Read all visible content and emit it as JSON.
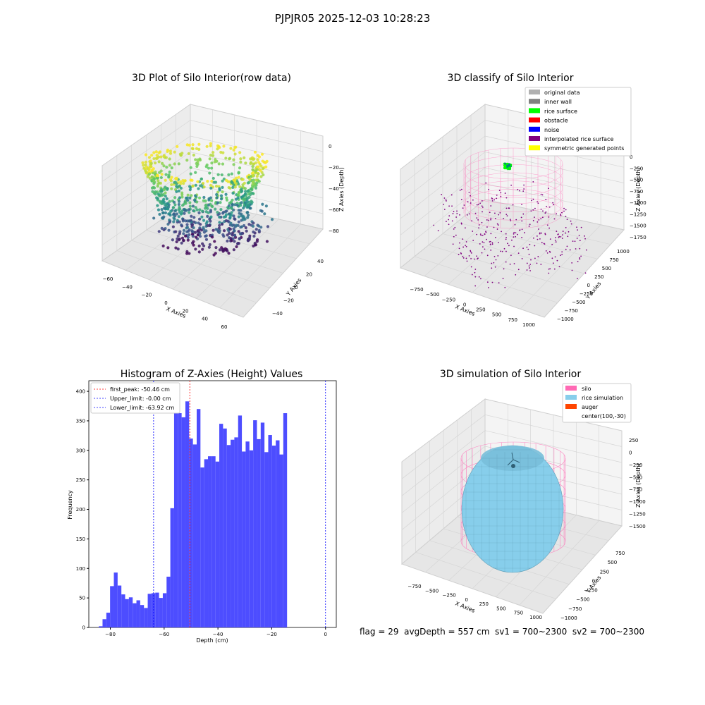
{
  "suptitle": "PJPJR05 2025-12-03 10:28:23",
  "colors": {
    "hist_bar": "#4d4dff",
    "silo_pink": "#ff69b4",
    "rice_blue": "#87ceeb",
    "auger": "#ff4500",
    "pane_face": "#f2f2f2",
    "grid": "#d9d9d9"
  },
  "panels": {
    "raw": {
      "title": "3D Plot of Silo Interior(row data)",
      "xlabel": "X Axies",
      "ylabel": "Y Axies",
      "zlabel": "Z Axies (Depth)",
      "xticks": [
        "−60",
        "−40",
        "−20",
        "0",
        "20",
        "40",
        "60"
      ],
      "yticks": [
        "40",
        "20",
        "0",
        "−20",
        "−40"
      ],
      "zticks": [
        "0",
        "−20",
        "−40",
        "−60",
        "−80"
      ]
    },
    "classify": {
      "title": "3D classify of Silo Interior",
      "xlabel": "X Axies",
      "ylabel": "Y Axies",
      "zlabel": "Z Axies (Depth)",
      "xticks": [
        "−750",
        "−500",
        "−250",
        "0",
        "250",
        "500",
        "750",
        "1000"
      ],
      "yticks": [
        "1000",
        "750",
        "500",
        "250",
        "0",
        "−250",
        "−500",
        "−750",
        "−1000"
      ],
      "zticks": [
        "0",
        "−250",
        "−500",
        "−750",
        "−1000",
        "−1250",
        "−1500",
        "−1750"
      ],
      "legend": [
        {
          "label": "original data",
          "color": "#b0b0b0"
        },
        {
          "label": "inner wall",
          "color": "#808080"
        },
        {
          "label": "rice surface",
          "color": "#00ff00"
        },
        {
          "label": "obstacle",
          "color": "#ff0000"
        },
        {
          "label": "noise",
          "color": "#0000ff"
        },
        {
          "label": "interpolated rice surface",
          "color": "#800080"
        },
        {
          "label": "symmetric generated points",
          "color": "#ffff00"
        }
      ]
    },
    "simulation": {
      "title": "3D simulation of Silo Interior",
      "xlabel": "X Axies",
      "ylabel": "Y Axies",
      "zlabel": "Z Axies (Depth)",
      "xticks": [
        "−750",
        "−500",
        "−250",
        "0",
        "250",
        "500",
        "750",
        "1000"
      ],
      "yticks": [
        "750",
        "500",
        "250",
        "0",
        "−250",
        "−500",
        "−750",
        "−1000"
      ],
      "zticks": [
        "250",
        "0",
        "−250",
        "−500",
        "−750",
        "−1000",
        "−1250",
        "−1500"
      ],
      "legend": [
        {
          "label": "silo",
          "color": "#ff69b4"
        },
        {
          "label": "rice simulation",
          "color": "#87ceeb"
        },
        {
          "label": "auger",
          "color": "#ff4500"
        },
        {
          "label": "center(100,-30)",
          "color": "none"
        }
      ]
    }
  },
  "chart_data": [
    {
      "type": "bar",
      "title": "Histogram of Z-Axies (Height) Values",
      "xlabel": "Depth (cm)",
      "ylabel": "Frequency",
      "xlim": [
        -88,
        4
      ],
      "ylim": [
        0,
        418
      ],
      "xticks": [
        -80,
        -60,
        -40,
        -20,
        0
      ],
      "yticks": [
        0,
        50,
        100,
        150,
        200,
        250,
        300,
        350,
        400
      ],
      "bin_start": -84.3,
      "bin_width": 1.4,
      "values": [
        2,
        14,
        25,
        70,
        93,
        71,
        56,
        48,
        51,
        41,
        46,
        38,
        33,
        57,
        58,
        59,
        50,
        58,
        86,
        202,
        397,
        363,
        356,
        383,
        320,
        310,
        370,
        271,
        285,
        290,
        290,
        281,
        345,
        337,
        309,
        318,
        322,
        359,
        298,
        315,
        300,
        351,
        319,
        347,
        297,
        326,
        308,
        317,
        293,
        363
      ],
      "vlines": [
        {
          "x": -50.46,
          "color": "#ff0000",
          "label": "first_peak: -50.46 cm"
        },
        {
          "x": 0.0,
          "color": "#0000ff",
          "label": "Upper_limit: -0.00 cm"
        },
        {
          "x": -63.92,
          "color": "#0000ff",
          "label": "Lower_limit: -63.92 cm"
        }
      ],
      "legend_position": "top-left"
    }
  ],
  "bottom_info": "flag = 29  avgDepth = 557 cm  sv1 = 700~2300  sv2 = 700~2300"
}
